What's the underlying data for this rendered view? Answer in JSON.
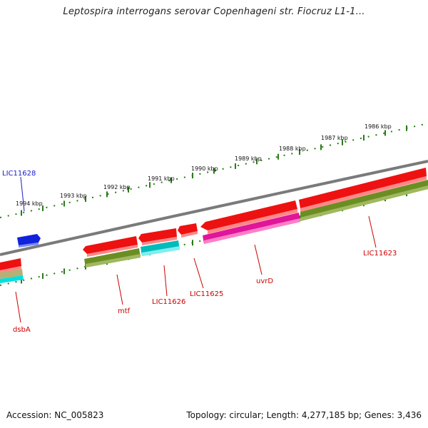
{
  "title": "Leptospira interrogans serovar Copenhageni str. Fiocruz L1-1...",
  "footer": {
    "accession": "Accession: NC_005823",
    "summary": "Topology: circular; Length: 4,277,185 bp; Genes: 3,436"
  },
  "colors": {
    "backbone": "#7a7a7a",
    "tick": "#2a7a1a",
    "forward_gene": "#ee1111",
    "label_red": "#cc0000",
    "label_blue": "#1a1acc",
    "cds_olive": "#6b8e23",
    "cds_cyan": "#00cccc",
    "cds_magenta": "#e0159a",
    "gene_blue": "#1122dd"
  },
  "scale_ticks": [
    "1986 kbp",
    "1987 kbp",
    "1988 kbp",
    "1989 kbp",
    "1990 kbp",
    "1991 kbp",
    "1992 kbp",
    "1993 kbp",
    "1994 kbp"
  ],
  "gene_labels": {
    "lic11628": "LIC11628",
    "lic11623": "LIC11623",
    "uvrd": "uvrD",
    "lic11625": "LIC11625",
    "lic11626": "LIC11626",
    "mtf": "mtf",
    "dsba": "dsbA"
  }
}
